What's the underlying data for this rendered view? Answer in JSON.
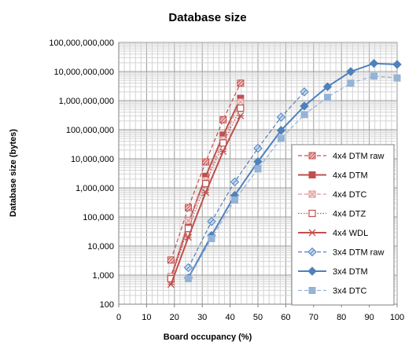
{
  "chart_data": {
    "type": "line",
    "title": "Database size",
    "xlabel": "Board occupancy (%)",
    "ylabel": "Database size (bytes)",
    "xlim": [
      0,
      100
    ],
    "ylim": [
      100,
      100000000000
    ],
    "y_scale": "log",
    "grid": true,
    "legend_position": "right",
    "x_ticks": [
      "0",
      "10",
      "20",
      "30",
      "40",
      "50",
      "60",
      "70",
      "80",
      "90",
      "100"
    ],
    "y_ticks": [
      "100",
      "1,000",
      "10,000",
      "100,000",
      "1,000,000",
      "10,000,000",
      "100,000,000",
      "1,000,000,000",
      "10,000,000,000",
      "100,000,000,000"
    ],
    "series": [
      {
        "name": "4x4 DTM raw",
        "color": "#c0504d",
        "line_style": "dashed",
        "marker": "square-hatched",
        "x": [
          18.75,
          25,
          31.25,
          37.5,
          43.75
        ],
        "y": [
          3300,
          210000,
          7800000,
          220000000,
          4000000000
        ]
      },
      {
        "name": "4x4 DTM",
        "color": "#c0504d",
        "line_style": "solid",
        "marker": "square-filled",
        "x": [
          18.75,
          25,
          31.25,
          37.5,
          43.75
        ],
        "y": [
          850,
          60000,
          2500000,
          65000000,
          1200000000
        ]
      },
      {
        "name": "4x4 DTC",
        "color": "#d99694",
        "line_style": "dashed",
        "marker": "square-x",
        "x": [
          18.75,
          25,
          31.25,
          37.5,
          43.75
        ],
        "y": [
          900,
          75000,
          1800000,
          45000000,
          900000000
        ]
      },
      {
        "name": "4x4 DTZ",
        "color": "#c0504d",
        "line_style": "dotted",
        "marker": "square-open",
        "x": [
          18.75,
          25,
          31.25,
          37.5,
          43.75
        ],
        "y": [
          750,
          40000,
          1400000,
          35000000,
          550000000
        ]
      },
      {
        "name": "4x4 WDL",
        "color": "#c0504d",
        "line_style": "solid",
        "marker": "asterisk",
        "x": [
          18.75,
          25,
          31.25,
          37.5,
          43.75
        ],
        "y": [
          480,
          20000,
          700000,
          18000000,
          300000000
        ]
      },
      {
        "name": "3x4 DTM raw",
        "color": "#4f81bd",
        "line_style": "dashed",
        "marker": "diamond-hatched",
        "x": [
          25,
          33.33,
          41.67,
          50,
          58.33,
          66.67
        ],
        "y": [
          1800,
          70000,
          1600000,
          23000000,
          270000000,
          2000000000
        ]
      },
      {
        "name": "3x4 DTM",
        "color": "#4f81bd",
        "line_style": "solid",
        "marker": "diamond-filled",
        "x": [
          25,
          33.33,
          41.67,
          50,
          58.33,
          66.67,
          75,
          83.33,
          91.67,
          100
        ],
        "y": [
          800,
          23000,
          550000,
          8000000,
          95000000,
          650000000,
          3000000000,
          10000000000,
          19000000000,
          17500000000
        ]
      },
      {
        "name": "3x4 DTC",
        "color": "#95b3d7",
        "line_style": "dashed",
        "marker": "square-filled",
        "x": [
          25,
          33.33,
          41.67,
          50,
          58.33,
          66.67,
          75,
          83.33,
          91.67,
          100
        ],
        "y": [
          750,
          18000,
          380000,
          4500000,
          50000000,
          330000000,
          1300000000,
          4000000000,
          7000000000,
          6000000000
        ]
      }
    ]
  }
}
